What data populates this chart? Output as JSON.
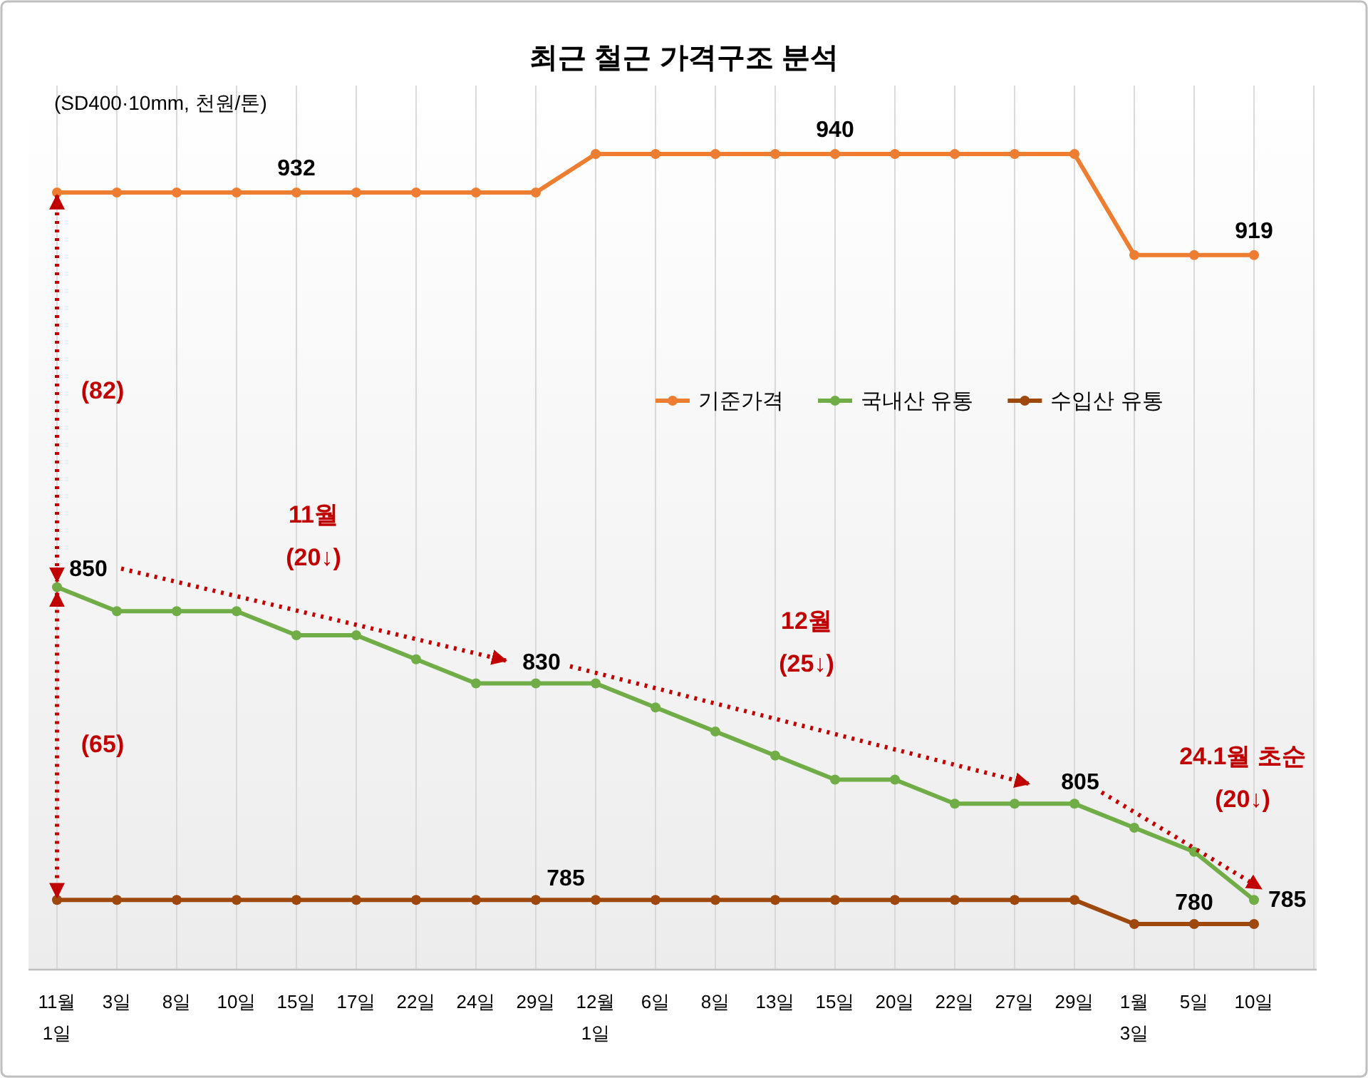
{
  "chart_data": {
    "type": "line",
    "title": "최근 철근 가격구조 분석",
    "subtitle": "(SD400·10mm, 천원/톤)",
    "categories": [
      "11월\n1일",
      "3일",
      "8일",
      "10일",
      "15일",
      "17일",
      "22일",
      "24일",
      "29일",
      "12월\n1일",
      "6일",
      "8일",
      "13일",
      "15일",
      "20일",
      "22일",
      "27일",
      "29일",
      "1월\n3일",
      "5일",
      "10일"
    ],
    "series": [
      {
        "name": "기준가격",
        "color": "#ed7d31",
        "values": [
          932,
          932,
          932,
          932,
          932,
          932,
          932,
          932,
          932,
          940,
          940,
          940,
          940,
          940,
          940,
          940,
          940,
          940,
          919,
          919,
          919
        ],
        "value_labels": [
          null,
          null,
          null,
          null,
          "932",
          null,
          null,
          null,
          null,
          null,
          null,
          null,
          null,
          "940",
          null,
          null,
          null,
          null,
          null,
          null,
          "919"
        ]
      },
      {
        "name": "국내산 유통",
        "color": "#70ad47",
        "values": [
          850,
          845,
          845,
          845,
          840,
          840,
          835,
          830,
          830,
          830,
          825,
          820,
          815,
          810,
          810,
          805,
          805,
          805,
          800,
          795,
          785
        ],
        "value_labels": [
          "850",
          null,
          null,
          null,
          null,
          null,
          null,
          null,
          "830",
          null,
          null,
          null,
          null,
          null,
          null,
          null,
          null,
          "805",
          null,
          null,
          "785"
        ]
      },
      {
        "name": "수입산 유통",
        "color": "#9e480e",
        "values": [
          785,
          785,
          785,
          785,
          785,
          785,
          785,
          785,
          785,
          785,
          785,
          785,
          785,
          785,
          785,
          785,
          785,
          785,
          780,
          780,
          780
        ],
        "value_labels": [
          null,
          null,
          null,
          null,
          null,
          null,
          null,
          null,
          null,
          "785",
          null,
          null,
          null,
          null,
          null,
          null,
          null,
          null,
          null,
          "780",
          null
        ]
      }
    ],
    "annotations": [
      "(82)",
      "(65)",
      "11월\n(20↓)",
      "12월\n(25↓)",
      "24.1월 초순\n(20↓)"
    ],
    "legend": "right",
    "grid": "x",
    "marker": "circle",
    "line_style": "solid"
  }
}
